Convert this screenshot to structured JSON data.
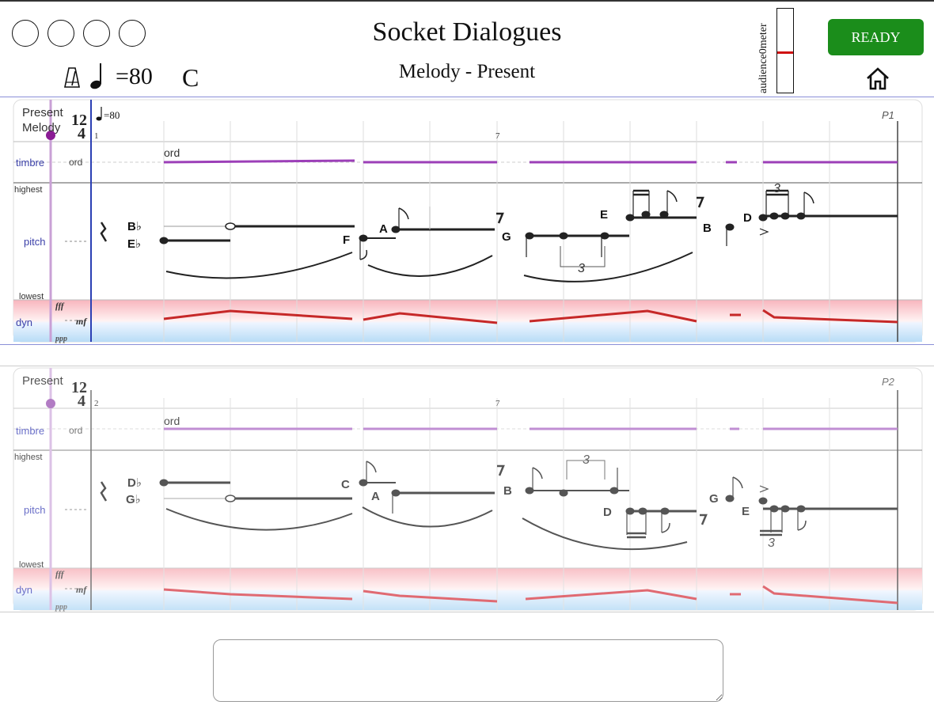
{
  "header": {
    "title": "Socket Dialogues",
    "subtitle": "Melody - Present",
    "tempo_value": "=80",
    "key": "C",
    "circles": [
      "",
      "",
      "",
      ""
    ],
    "audience_meter_label": "audience0meter",
    "audience_meter_level": 0.51,
    "ready_label": "READY",
    "accent_ready": "#1b8d1b",
    "meter_bar_color": "#d01010"
  },
  "score": {
    "p1": {
      "part_label": "P1",
      "name_line1": "Present",
      "name_line2": "Melody",
      "time_sig_top": "12",
      "time_sig_bottom": "4",
      "measure_start": "1",
      "measure_mid": "7",
      "tempo_mark": "=80",
      "timbre_label": "timbre",
      "timbre_value": "ord",
      "timbre_mark": "ord",
      "pitch_label": "pitch",
      "highest": "highest",
      "lowest": "lowest",
      "dyn_label": "dyn",
      "dyn_top": "fff",
      "dyn_mid": "mf",
      "dyn_bottom": "ppp",
      "note_names": [
        {
          "l": "B",
          "acc": "♭"
        },
        {
          "l": "E",
          "acc": "♭"
        },
        {
          "l": "F",
          "acc": ""
        },
        {
          "l": "A",
          "acc": ""
        },
        {
          "l": "G",
          "acc": ""
        },
        {
          "l": "E",
          "acc": ""
        },
        {
          "l": "B",
          "acc": ""
        },
        {
          "l": "D",
          "acc": ""
        }
      ],
      "tuplet_labels": [
        "3",
        "3"
      ]
    },
    "p2": {
      "part_label": "P2",
      "name_line1": "Present",
      "time_sig_top": "12",
      "time_sig_bottom": "4",
      "measure_start": "2",
      "measure_mid": "7",
      "timbre_label": "timbre",
      "timbre_value": "ord",
      "timbre_mark": "ord",
      "pitch_label": "pitch",
      "highest": "highest",
      "lowest": "lowest",
      "dyn_label": "dyn",
      "dyn_top": "fff",
      "dyn_mid": "mf",
      "dyn_bottom": "ppp",
      "note_names": [
        {
          "l": "D",
          "acc": "♭"
        },
        {
          "l": "G",
          "acc": "♭"
        },
        {
          "l": "C",
          "acc": ""
        },
        {
          "l": "A",
          "acc": ""
        },
        {
          "l": "B",
          "acc": ""
        },
        {
          "l": "D",
          "acc": ""
        },
        {
          "l": "G",
          "acc": ""
        },
        {
          "l": "E",
          "acc": ""
        }
      ],
      "tuplet_labels": [
        "3",
        "3"
      ]
    }
  },
  "feedback_input": {
    "value": "",
    "placeholder": ""
  }
}
